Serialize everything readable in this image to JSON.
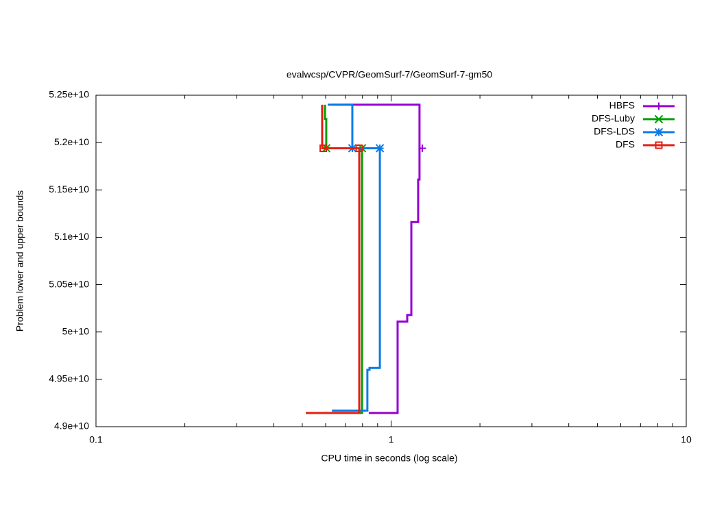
{
  "chart_data": {
    "type": "line",
    "title": "evalwcsp/CVPR/GeomSurf-7/GeomSurf-7-gm50",
    "xlabel": "CPU time in seconds (log scale)",
    "ylabel": "Problem lower and upper bounds",
    "xscale": "log",
    "xlim": [
      0.1,
      10
    ],
    "xticks": [
      0.1,
      1,
      10
    ],
    "xminorticks": [
      0.2,
      0.3,
      0.4,
      0.5,
      0.6,
      0.7,
      0.8,
      0.9,
      2,
      3,
      4,
      5,
      6,
      7,
      8,
      9
    ],
    "ylim": [
      49000000000,
      52500000000
    ],
    "yticks": [
      {
        "value": 49000000000,
        "label": "4.9e+10"
      },
      {
        "value": 49500000000,
        "label": "4.95e+10"
      },
      {
        "value": 50000000000,
        "label": "5e+10"
      },
      {
        "value": 50500000000,
        "label": "5.05e+10"
      },
      {
        "value": 51000000000,
        "label": "5.1e+10"
      },
      {
        "value": 51500000000,
        "label": "5.15e+10"
      },
      {
        "value": 52000000000,
        "label": "5.2e+10"
      },
      {
        "value": 52500000000,
        "label": "5.25e+10"
      }
    ],
    "grid": false,
    "legend": "top-right",
    "series": [
      {
        "name": "HBFS",
        "color": "#9400d3",
        "marker": "plus",
        "x": [
          0.63,
          1.248,
          1.248,
          1.235,
          1.235,
          1.171,
          1.171,
          1.134,
          1.134,
          1.052,
          1.052,
          0.84
        ],
        "values": [
          52400000000,
          52400000000,
          51610000000,
          51610000000,
          51160000000,
          51160000000,
          50180000000,
          50180000000,
          50110000000,
          50110000000,
          49145000000,
          49145000000
        ],
        "marker_x": [
          1.275
        ],
        "marker_values": [
          51940000000
        ]
      },
      {
        "name": "DFS-Luby",
        "color": "#009e00",
        "marker": "cross",
        "x": [
          0.597,
          0.597,
          0.603,
          0.603,
          0.797,
          0.797,
          0.63
        ],
        "values": [
          52400000000,
          52250000000,
          52250000000,
          51940000000,
          51940000000,
          49145000000,
          49145000000
        ],
        "marker_x": [
          0.603,
          0.797
        ],
        "marker_values": [
          51940000000,
          51940000000
        ]
      },
      {
        "name": "DFS-LDS",
        "color": "#0a7ae6",
        "marker": "star",
        "x": [
          0.61,
          0.739,
          0.739,
          0.916,
          0.916,
          0.845,
          0.845,
          0.831,
          0.831,
          0.63
        ],
        "values": [
          52400000000,
          52400000000,
          51940000000,
          51940000000,
          49620000000,
          49620000000,
          49600000000,
          49600000000,
          49170000000,
          49170000000
        ],
        "marker_x": [
          0.739,
          0.916
        ],
        "marker_values": [
          51940000000,
          51940000000
        ]
      },
      {
        "name": "DFS",
        "color": "#e51e10",
        "marker": "square",
        "x": [
          0.584,
          0.584,
          0.78,
          0.78,
          0.514
        ],
        "values": [
          52400000000,
          51940000000,
          51940000000,
          49145000000,
          49145000000
        ],
        "marker_x": [
          0.589,
          0.78
        ],
        "marker_values": [
          51940000000,
          51940000000
        ]
      }
    ]
  }
}
